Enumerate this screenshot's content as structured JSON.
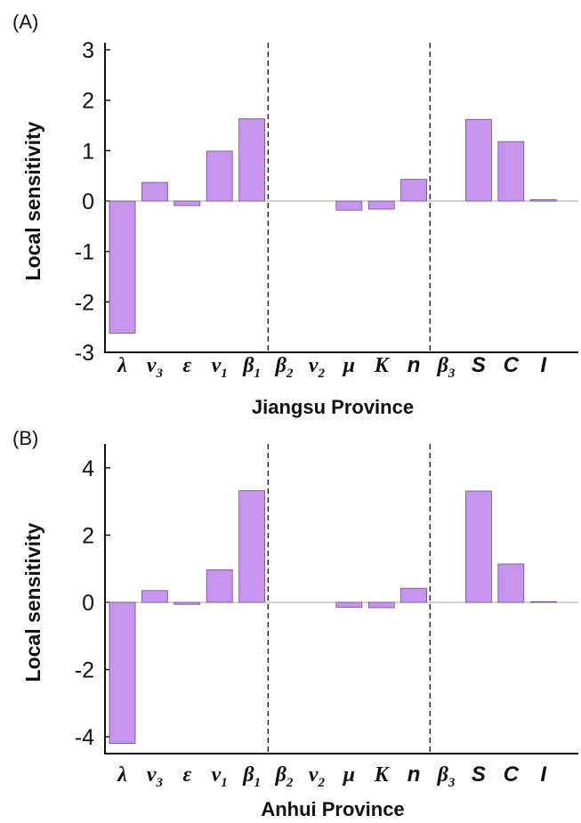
{
  "chart_data": [
    {
      "type": "bar",
      "panel_label": "(A)",
      "xlabel": "Jiangsu Province",
      "ylabel": "Local sensitivity",
      "ylim": [
        -3,
        3
      ],
      "yticks": [
        3,
        2,
        1,
        0,
        -1,
        -2,
        -3
      ],
      "categories": [
        {
          "base": "λ",
          "sub": "",
          "style": "serif"
        },
        {
          "base": "ν",
          "sub": "3",
          "style": "serif"
        },
        {
          "base": "ε",
          "sub": "",
          "style": "serif"
        },
        {
          "base": "ν",
          "sub": "1",
          "style": "serif"
        },
        {
          "base": "β",
          "sub": "1",
          "style": "serif"
        },
        {
          "base": "β",
          "sub": "2",
          "style": "serif"
        },
        {
          "base": "ν",
          "sub": "2",
          "style": "serif"
        },
        {
          "base": "μ",
          "sub": "",
          "style": "serif"
        },
        {
          "base": "K",
          "sub": "",
          "style": "serif"
        },
        {
          "base": "n",
          "sub": "",
          "style": "sans"
        },
        {
          "base": "β",
          "sub": "3",
          "style": "serif"
        },
        {
          "base": "S",
          "sub": "",
          "style": "sans"
        },
        {
          "base": "C",
          "sub": "",
          "style": "sans"
        },
        {
          "base": "I",
          "sub": "",
          "style": "sans"
        }
      ],
      "values": [
        -2.62,
        0.37,
        -0.09,
        0.99,
        1.63,
        0.0,
        0.0,
        -0.18,
        -0.16,
        0.43,
        0.0,
        1.62,
        1.18,
        0.03
      ],
      "separators_after_index": [
        4,
        9
      ],
      "bar_color": "#c895ee"
    },
    {
      "type": "bar",
      "panel_label": "(B)",
      "xlabel": "Anhui Province",
      "ylabel": "Local sensitivity",
      "ylim": [
        -4.5,
        4.5
      ],
      "yticks": [
        4,
        2,
        0,
        -2,
        -4
      ],
      "categories": [
        {
          "base": "λ",
          "sub": "",
          "style": "serif"
        },
        {
          "base": "ν",
          "sub": "3",
          "style": "serif"
        },
        {
          "base": "ε",
          "sub": "",
          "style": "serif"
        },
        {
          "base": "ν",
          "sub": "1",
          "style": "serif"
        },
        {
          "base": "β",
          "sub": "1",
          "style": "serif"
        },
        {
          "base": "β",
          "sub": "2",
          "style": "serif"
        },
        {
          "base": "ν",
          "sub": "2",
          "style": "serif"
        },
        {
          "base": "μ",
          "sub": "",
          "style": "serif"
        },
        {
          "base": "K",
          "sub": "",
          "style": "serif"
        },
        {
          "base": "n",
          "sub": "",
          "style": "sans"
        },
        {
          "base": "β",
          "sub": "3",
          "style": "serif"
        },
        {
          "base": "S",
          "sub": "",
          "style": "sans"
        },
        {
          "base": "C",
          "sub": "",
          "style": "sans"
        },
        {
          "base": "I",
          "sub": "",
          "style": "sans"
        }
      ],
      "values": [
        -4.2,
        0.35,
        -0.06,
        0.97,
        3.32,
        0.0,
        0.0,
        -0.15,
        -0.16,
        0.42,
        0.0,
        3.31,
        1.14,
        0.02
      ],
      "separators_after_index": [
        4,
        9
      ],
      "bar_color": "#c895ee"
    }
  ]
}
